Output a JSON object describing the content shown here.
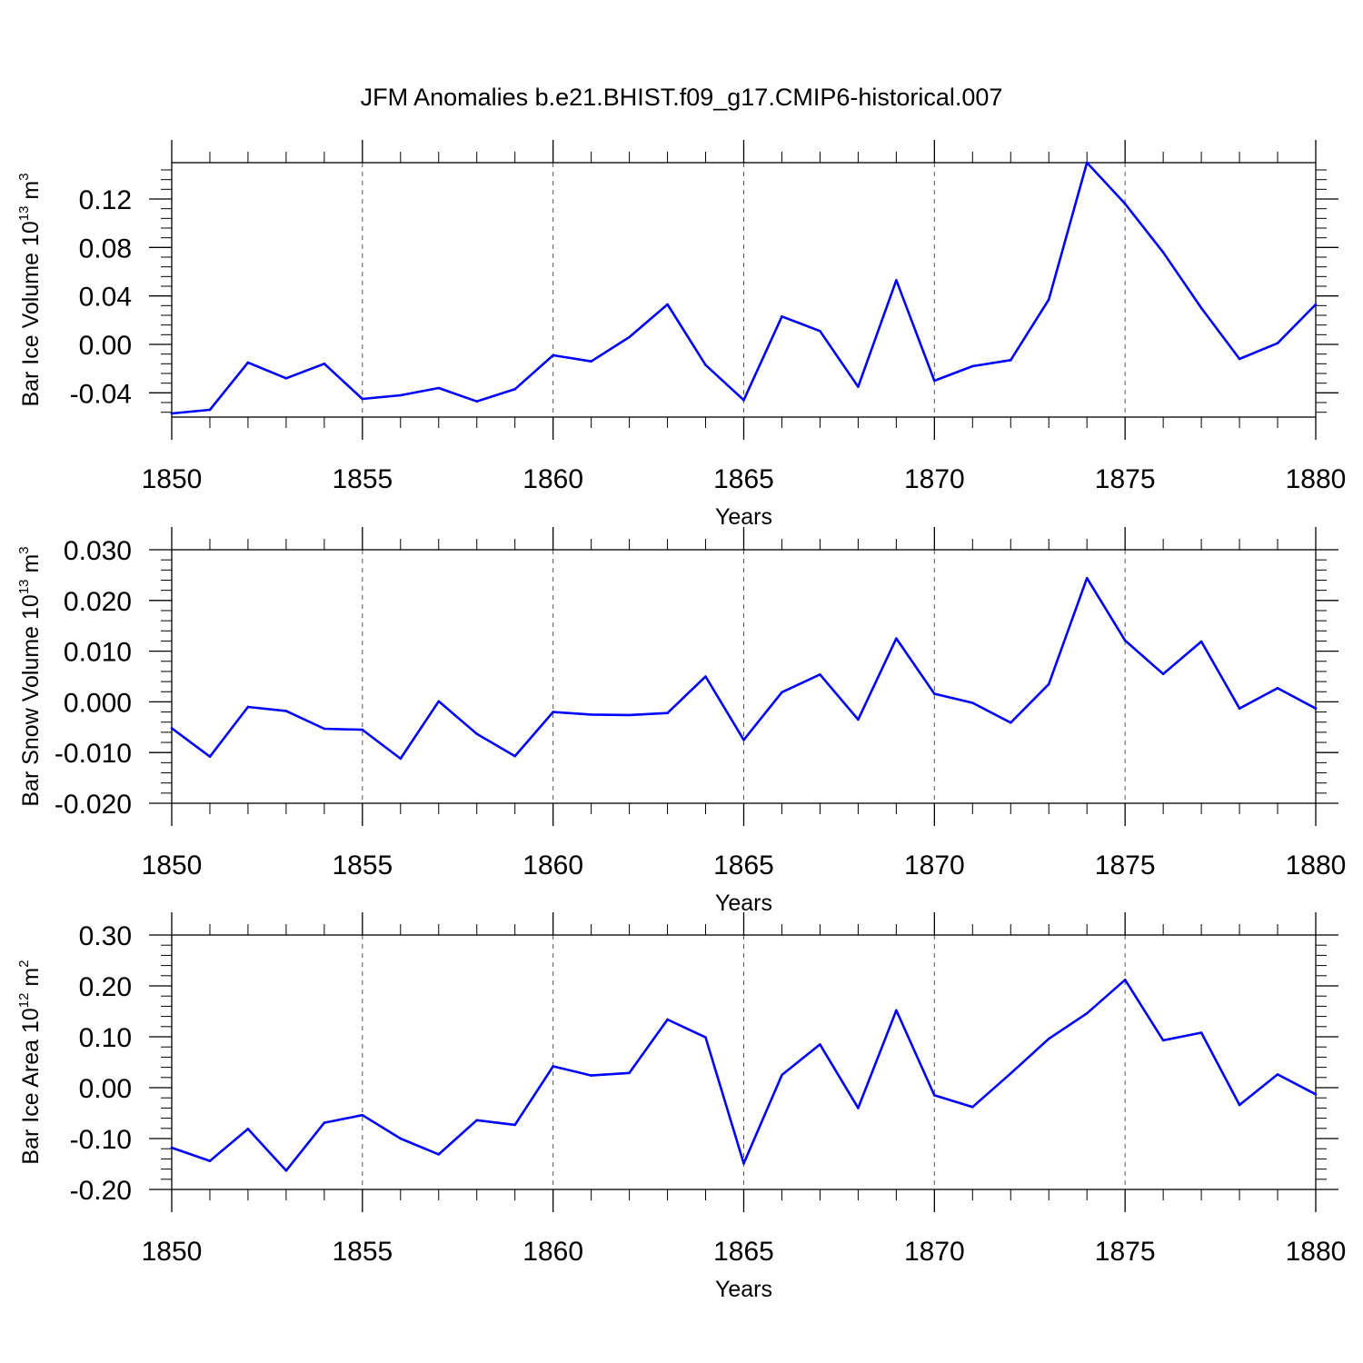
{
  "title": "JFM Anomalies b.e21.BHIST.f09_g17.CMIP6-historical.007",
  "chart_data": [
    {
      "type": "line",
      "ylabel": {
        "main": "Bar Ice Volume 10",
        "exp": "13",
        "unit": " m",
        "unit_exp": "3"
      },
      "xlabel": "Years",
      "xlim": [
        1850,
        1880
      ],
      "ylim": [
        -0.06,
        0.15
      ],
      "xticks": [
        1850,
        1855,
        1860,
        1865,
        1870,
        1875,
        1880
      ],
      "xtick_labels": [
        "1850",
        "1855",
        "1860",
        "1865",
        "1870",
        "1875",
        "1880"
      ],
      "yticks": [
        -0.04,
        0.0,
        0.04,
        0.08,
        0.12
      ],
      "ytick_labels": [
        "-0.04",
        "0.00",
        "0.04",
        "0.08",
        "0.12"
      ],
      "grid": "vertical dashed at labeled years",
      "color": "#0000ff",
      "x": [
        1850,
        1851,
        1852,
        1853,
        1854,
        1855,
        1856,
        1857,
        1858,
        1859,
        1860,
        1861,
        1862,
        1863,
        1864,
        1865,
        1866,
        1867,
        1868,
        1869,
        1870,
        1871,
        1872,
        1873,
        1874,
        1875,
        1876,
        1877,
        1878,
        1879,
        1880
      ],
      "values": [
        -0.057,
        -0.054,
        -0.015,
        -0.028,
        -0.016,
        -0.045,
        -0.042,
        -0.036,
        -0.047,
        -0.037,
        -0.009,
        -0.014,
        0.006,
        0.033,
        -0.017,
        -0.046,
        0.023,
        0.011,
        -0.035,
        0.053,
        -0.03,
        -0.018,
        -0.013,
        0.037,
        0.15,
        0.116,
        0.076,
        0.03,
        -0.012,
        0.001,
        0.033
      ]
    },
    {
      "type": "line",
      "ylabel": {
        "main": "Bar Snow Volume 10",
        "exp": "13",
        "unit": " m",
        "unit_exp": "3"
      },
      "xlabel": "Years",
      "xlim": [
        1850,
        1880
      ],
      "ylim": [
        -0.02,
        0.03
      ],
      "xticks": [
        1850,
        1855,
        1860,
        1865,
        1870,
        1875,
        1880
      ],
      "xtick_labels": [
        "1850",
        "1855",
        "1860",
        "1865",
        "1870",
        "1875",
        "1880"
      ],
      "yticks": [
        -0.02,
        -0.01,
        0.0,
        0.01,
        0.02,
        0.03
      ],
      "ytick_labels": [
        "-0.020",
        "-0.010",
        "0.000",
        "0.010",
        "0.020",
        "0.030"
      ],
      "grid": "vertical dashed at labeled years",
      "color": "#0000ff",
      "x": [
        1850,
        1851,
        1852,
        1853,
        1854,
        1855,
        1856,
        1857,
        1858,
        1859,
        1860,
        1861,
        1862,
        1863,
        1864,
        1865,
        1866,
        1867,
        1868,
        1869,
        1870,
        1871,
        1872,
        1873,
        1874,
        1875,
        1876,
        1877,
        1878,
        1879,
        1880
      ],
      "values": [
        -0.0052,
        -0.0108,
        -0.001,
        -0.0018,
        -0.0053,
        -0.0055,
        -0.0112,
        0.0001,
        -0.0063,
        -0.0107,
        -0.002,
        -0.0025,
        -0.0026,
        -0.0022,
        0.005,
        -0.0075,
        0.0019,
        0.0054,
        -0.0035,
        0.0125,
        0.0016,
        -0.0002,
        -0.0041,
        0.0035,
        0.0244,
        0.0121,
        0.0055,
        0.0119,
        -0.0013,
        0.0027,
        -0.0013
      ]
    },
    {
      "type": "line",
      "ylabel": {
        "main": "Bar Ice Area 10",
        "exp": "12",
        "unit": " m",
        "unit_exp": "2"
      },
      "xlabel": "Years",
      "xlim": [
        1850,
        1880
      ],
      "ylim": [
        -0.2,
        0.3
      ],
      "xticks": [
        1850,
        1855,
        1860,
        1865,
        1870,
        1875,
        1880
      ],
      "xtick_labels": [
        "1850",
        "1855",
        "1860",
        "1865",
        "1870",
        "1875",
        "1880"
      ],
      "yticks": [
        -0.2,
        -0.1,
        0.0,
        0.1,
        0.2,
        0.3
      ],
      "ytick_labels": [
        "-0.20",
        "-0.10",
        "0.00",
        "0.10",
        "0.20",
        "0.30"
      ],
      "grid": "vertical dashed at labeled years",
      "color": "#0000ff",
      "x": [
        1850,
        1851,
        1852,
        1853,
        1854,
        1855,
        1856,
        1857,
        1858,
        1859,
        1860,
        1861,
        1862,
        1863,
        1864,
        1865,
        1866,
        1867,
        1868,
        1869,
        1870,
        1871,
        1872,
        1873,
        1874,
        1875,
        1876,
        1877,
        1878,
        1879,
        1880
      ],
      "values": [
        -0.118,
        -0.144,
        -0.081,
        -0.163,
        -0.069,
        -0.054,
        -0.1,
        -0.131,
        -0.064,
        -0.073,
        0.042,
        0.024,
        0.029,
        0.134,
        0.099,
        -0.149,
        0.025,
        0.085,
        -0.04,
        0.152,
        -0.015,
        -0.038,
        0.028,
        0.096,
        0.146,
        0.212,
        0.093,
        0.108,
        -0.034,
        0.026,
        -0.013
      ]
    }
  ]
}
